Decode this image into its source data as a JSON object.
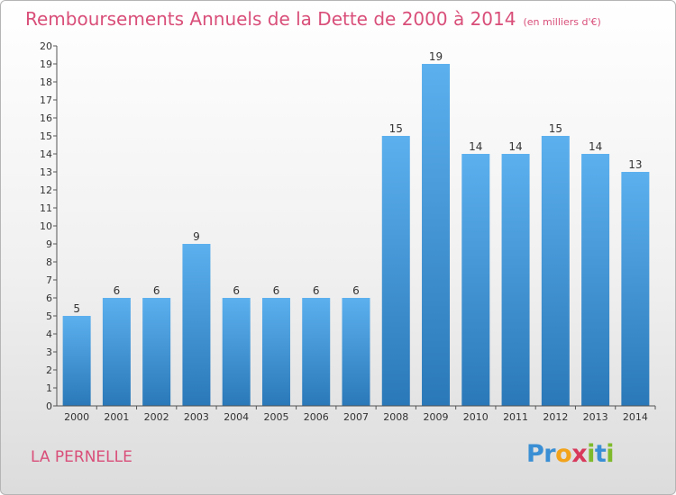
{
  "chart_data": {
    "type": "bar",
    "title": "Remboursements Annuels de la Dette de 2000 à 2014",
    "subtitle": "(en milliers d'€)",
    "categories": [
      "2000",
      "2001",
      "2002",
      "2003",
      "2004",
      "2005",
      "2006",
      "2007",
      "2008",
      "2009",
      "2010",
      "2011",
      "2012",
      "2013",
      "2014"
    ],
    "values": [
      5,
      6,
      6,
      9,
      6,
      6,
      6,
      6,
      15,
      19,
      14,
      14,
      15,
      14,
      13
    ],
    "xlabel": "",
    "ylabel": "",
    "ylim": [
      0,
      20
    ],
    "yticks": [
      0,
      1,
      2,
      3,
      4,
      5,
      6,
      7,
      8,
      9,
      10,
      11,
      12,
      13,
      14,
      15,
      16,
      17,
      18,
      19,
      20
    ],
    "grid": false,
    "bar_color": "#3d8fd6"
  },
  "footer": {
    "place": "LA PERNELLE",
    "logo": [
      {
        "ch": "P",
        "color": "#3a8fd4"
      },
      {
        "ch": "r",
        "color": "#3a8fd4"
      },
      {
        "ch": "o",
        "color": "#f2a31b"
      },
      {
        "ch": "x",
        "color": "#d8395b"
      },
      {
        "ch": "i",
        "color": "#7fba2c"
      },
      {
        "ch": "t",
        "color": "#3a8fd4"
      },
      {
        "ch": "i",
        "color": "#7fba2c"
      }
    ]
  }
}
